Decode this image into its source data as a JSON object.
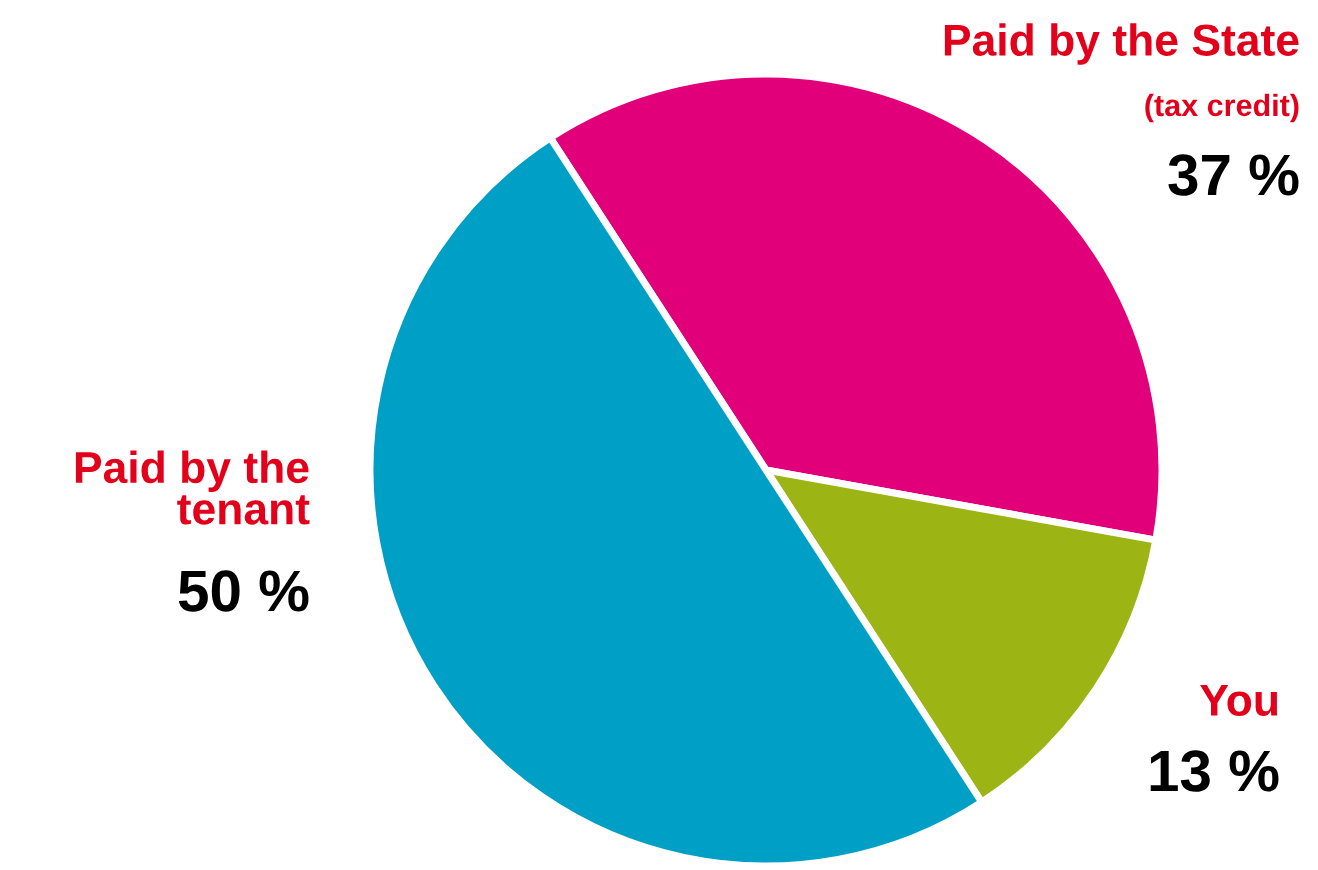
{
  "chart_data": {
    "type": "pie",
    "categories": [
      "Paid by the State",
      "You",
      "Paid by the\ntenant"
    ],
    "values": [
      37,
      13,
      50
    ],
    "value_labels": [
      "37 %",
      "13 %",
      "50 %"
    ],
    "colors": [
      "#e2007a",
      "#9db514",
      "#00a0c6"
    ],
    "annotations": [
      "(tax credit)"
    ],
    "legend": false
  }
}
